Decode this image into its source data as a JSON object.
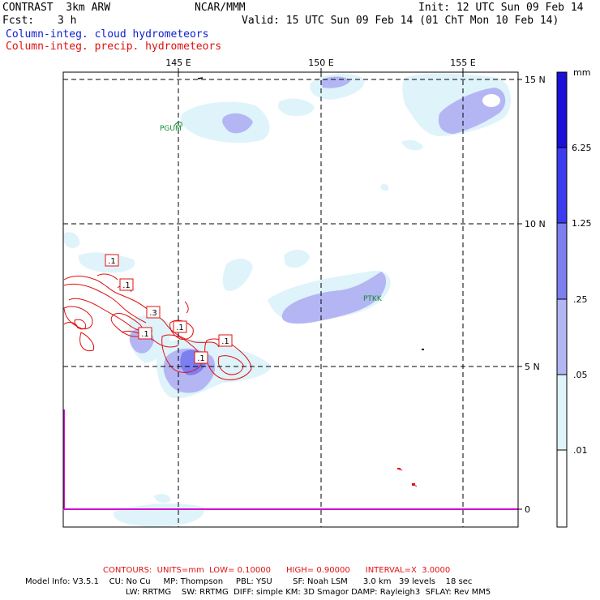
{
  "header": {
    "model_name": "CONTRAST  3km ARW",
    "org": "NCAR/MMM",
    "init": "Init: 12 UTC Sun 09 Feb 14",
    "fcst_label": "Fcst:",
    "fcst_value": "3 h",
    "valid": "Valid: 15 UTC Sun 09 Feb 14 (01 ChT Mon 10 Feb 14)",
    "line_blue": "Column-integ. cloud hydrometeors",
    "line_red": "Column-integ. precip. hydrometeors"
  },
  "map": {
    "lon_labels": [
      "145 E",
      "150 E",
      "155 E"
    ],
    "lat_labels": [
      "15 N",
      "10 N",
      "5 N",
      "0"
    ],
    "stations": [
      "PGUM",
      "PTKK"
    ],
    "contour_labels": [
      ".1",
      ".1",
      ".3",
      ".1",
      ".1",
      ".1",
      ".1"
    ]
  },
  "colorbar": {
    "unit": "mm",
    "labels": [
      "6.25",
      "1.25",
      ".25",
      ".05",
      ".01"
    ],
    "colors": [
      "#1a10d8",
      "#3b3cf0",
      "#7d7ef0",
      "#b4b6f4",
      "#dff3fb",
      "#ffffff"
    ]
  },
  "colors": {
    "cloud_light": "#dff3fb",
    "cloud_mid": "#b4b6f4",
    "cloud_dark": "#7d7ef0",
    "precip_contour": "#e01010",
    "station_text": "#0a8a2a",
    "equator_line": "#d010d0"
  },
  "footer": {
    "contours": "CONTOURS:  UNITS=mm  LOW= 0.10000      HIGH= 0.90000      INTERVAL=X  3.0000",
    "model_info_1": "Model Info: V3.5.1    CU: No Cu     MP: Thompson     PBL: YSU        SF: Noah LSM      3.0 km   39 levels    18 sec",
    "model_info_2": "LW: RRTMG    SW: RRTMG  DIFF: simple KM: 3D Smagor DAMP: Rayleigh3  SFLAY: Rev MM5"
  }
}
